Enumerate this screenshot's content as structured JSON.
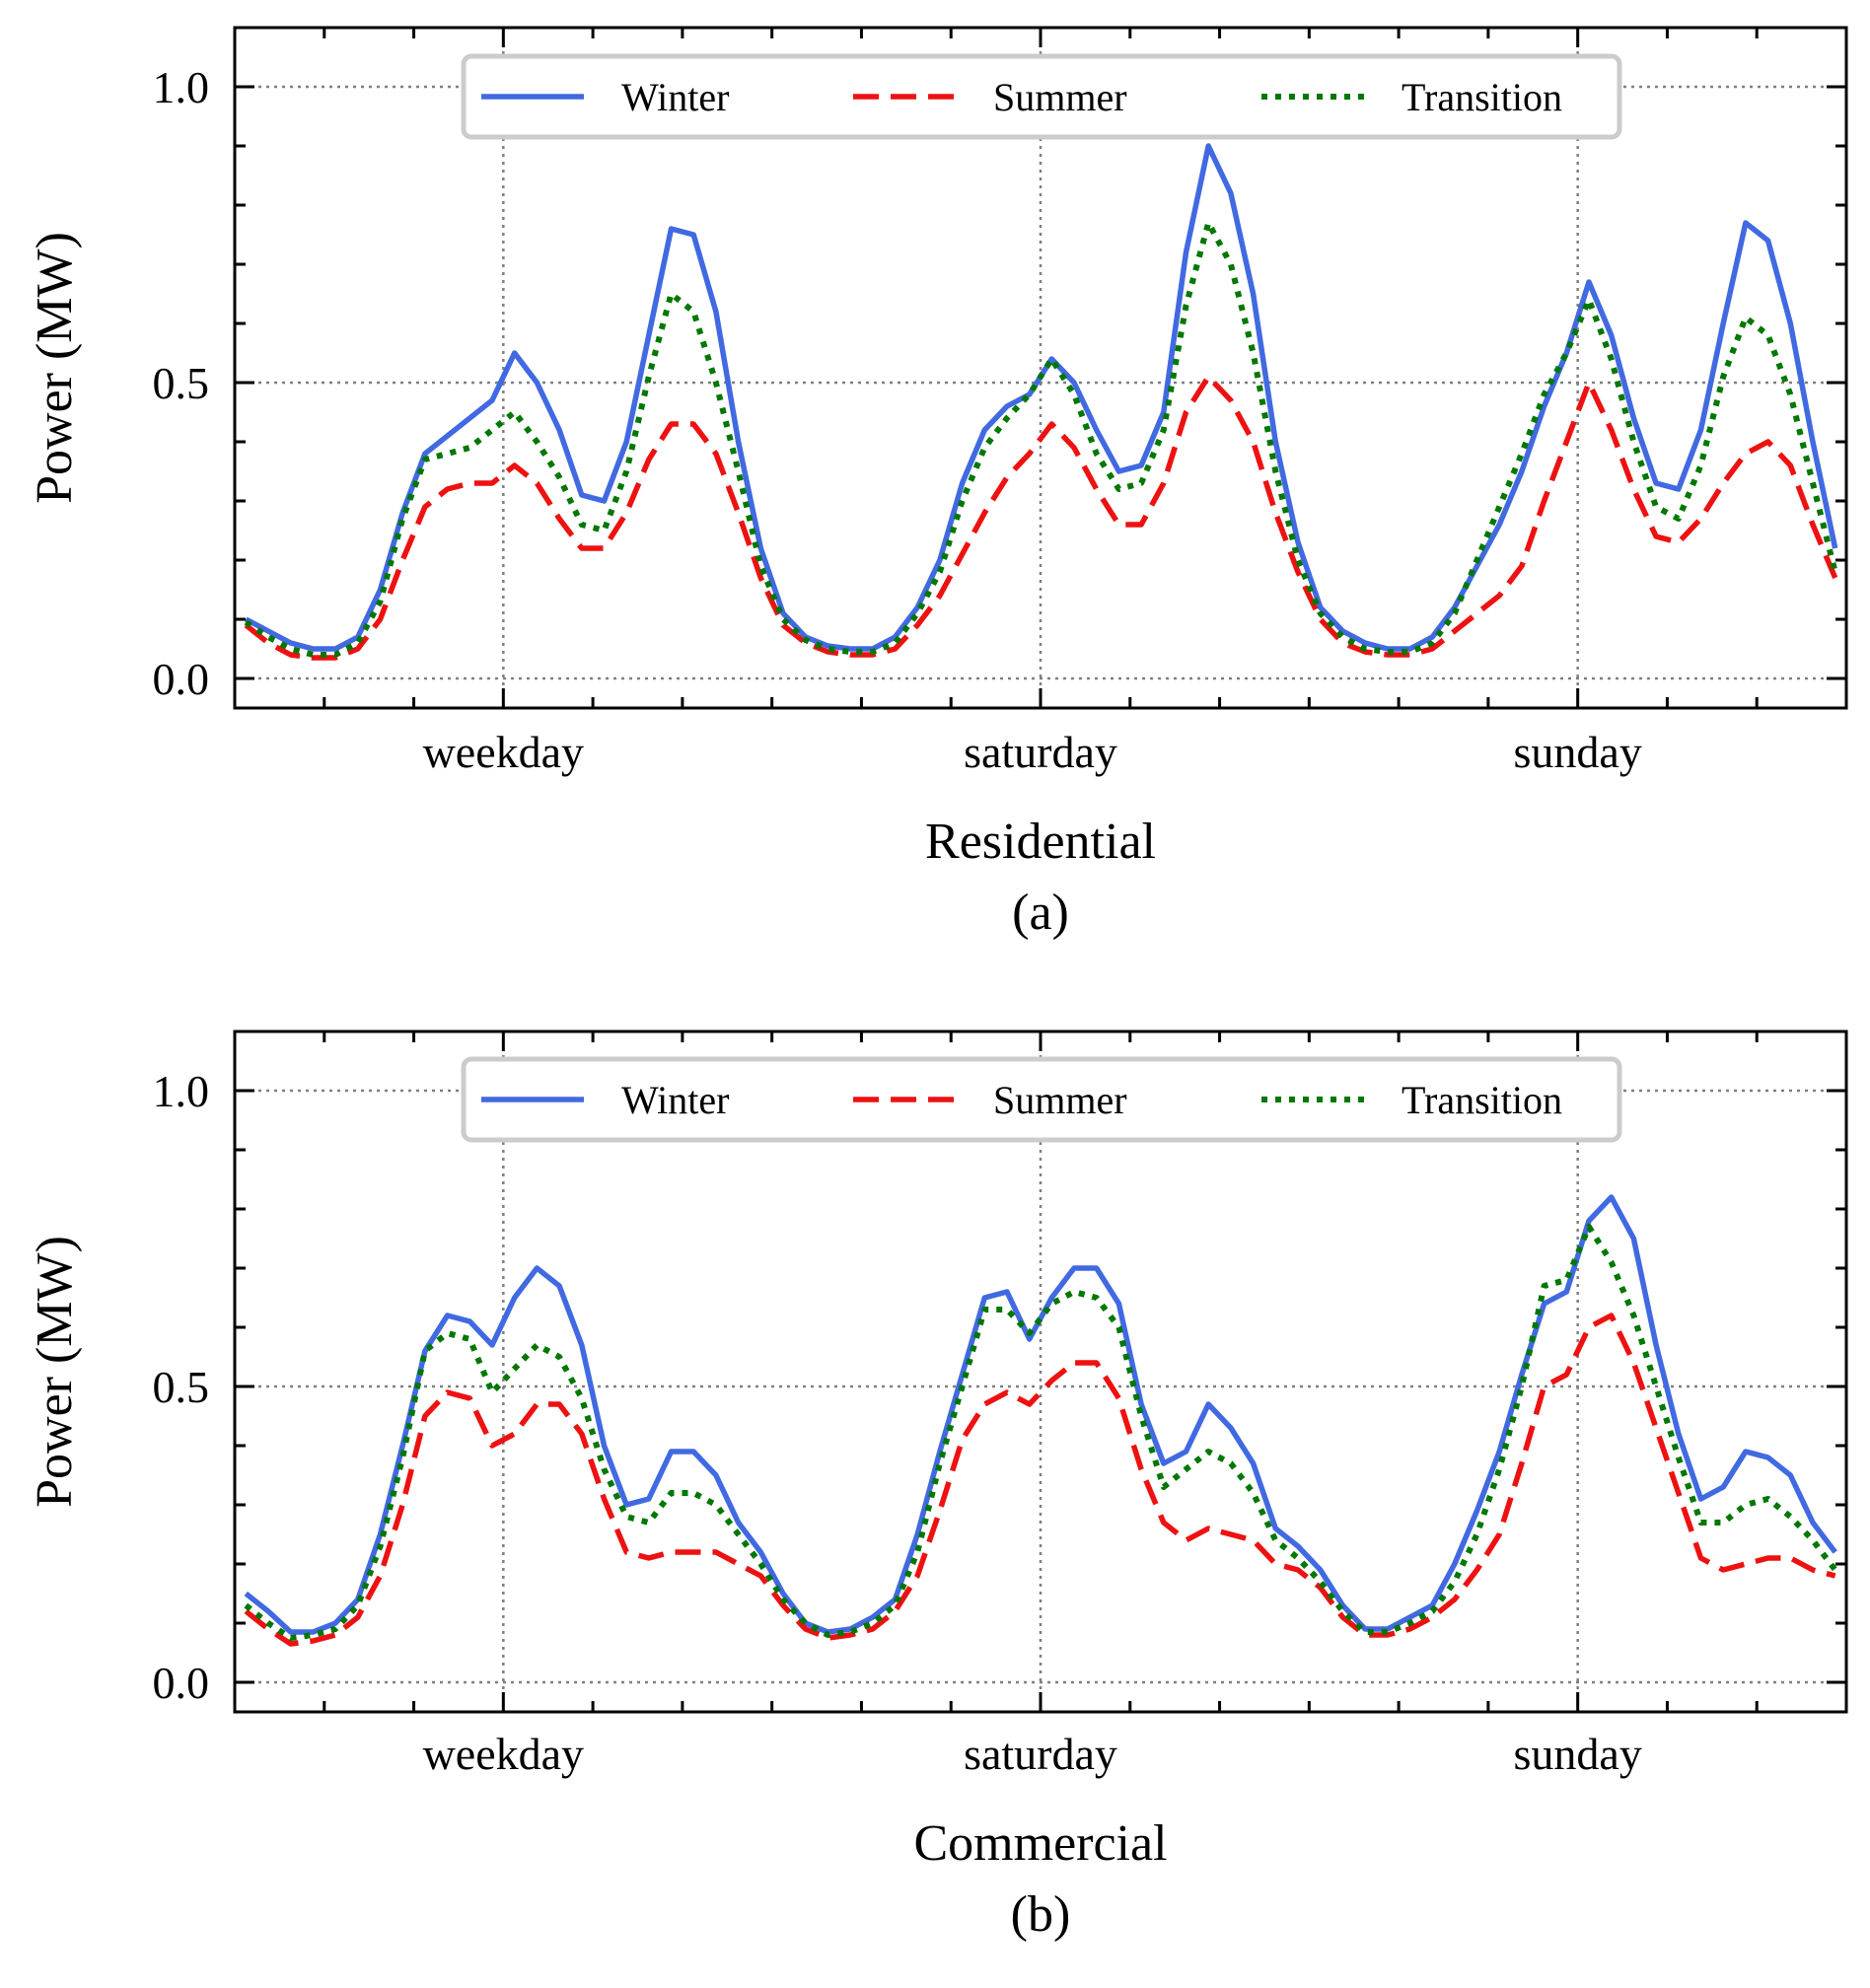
{
  "chart_data": [
    {
      "type": "line",
      "xlabel": "Residential",
      "caption": "(a)",
      "ylabel": "Power (MW)",
      "ylim": [
        -0.05,
        1.1
      ],
      "yticks": [
        "0.0",
        "0.5",
        "1.0"
      ],
      "xtick_labels": [
        "weekday",
        "saturday",
        "sunday"
      ],
      "x_domain": [
        0,
        72
      ],
      "xtick_positions": [
        12,
        36,
        60
      ],
      "grid": true,
      "legend_position": "top-center",
      "series": [
        {
          "name": "Winter",
          "color": "#4169E1",
          "dash": "solid",
          "values": [
            0.1,
            0.08,
            0.06,
            0.05,
            0.05,
            0.07,
            0.15,
            0.28,
            0.38,
            0.41,
            0.44,
            0.47,
            0.55,
            0.5,
            0.42,
            0.31,
            0.3,
            0.4,
            0.58,
            0.76,
            0.75,
            0.62,
            0.4,
            0.22,
            0.11,
            0.07,
            0.055,
            0.05,
            0.05,
            0.07,
            0.12,
            0.2,
            0.33,
            0.42,
            0.46,
            0.48,
            0.54,
            0.5,
            0.42,
            0.35,
            0.36,
            0.45,
            0.72,
            0.9,
            0.82,
            0.65,
            0.4,
            0.23,
            0.12,
            0.08,
            0.06,
            0.05,
            0.05,
            0.07,
            0.12,
            0.19,
            0.26,
            0.35,
            0.46,
            0.55,
            0.67,
            0.58,
            0.44,
            0.33,
            0.32,
            0.42,
            0.6,
            0.77,
            0.74,
            0.6,
            0.4,
            0.22
          ]
        },
        {
          "name": "Summer",
          "color": "#EE1111",
          "dash": "dashed",
          "values": [
            0.09,
            0.06,
            0.04,
            0.035,
            0.035,
            0.05,
            0.1,
            0.2,
            0.29,
            0.32,
            0.33,
            0.33,
            0.36,
            0.33,
            0.27,
            0.22,
            0.22,
            0.28,
            0.37,
            0.43,
            0.43,
            0.38,
            0.28,
            0.17,
            0.09,
            0.06,
            0.045,
            0.04,
            0.04,
            0.05,
            0.09,
            0.14,
            0.21,
            0.28,
            0.34,
            0.38,
            0.43,
            0.39,
            0.32,
            0.26,
            0.26,
            0.33,
            0.45,
            0.51,
            0.47,
            0.4,
            0.28,
            0.18,
            0.1,
            0.06,
            0.045,
            0.04,
            0.04,
            0.05,
            0.08,
            0.11,
            0.14,
            0.19,
            0.3,
            0.4,
            0.5,
            0.42,
            0.32,
            0.24,
            0.23,
            0.27,
            0.33,
            0.38,
            0.4,
            0.36,
            0.26,
            0.17
          ]
        },
        {
          "name": "Transition",
          "color": "#007700",
          "dash": "dotted",
          "values": [
            0.095,
            0.07,
            0.05,
            0.04,
            0.04,
            0.06,
            0.13,
            0.27,
            0.37,
            0.38,
            0.39,
            0.42,
            0.45,
            0.4,
            0.34,
            0.26,
            0.25,
            0.35,
            0.51,
            0.65,
            0.62,
            0.5,
            0.35,
            0.19,
            0.1,
            0.065,
            0.05,
            0.045,
            0.045,
            0.06,
            0.11,
            0.18,
            0.3,
            0.39,
            0.44,
            0.48,
            0.54,
            0.48,
            0.38,
            0.32,
            0.33,
            0.42,
            0.63,
            0.77,
            0.7,
            0.55,
            0.35,
            0.2,
            0.11,
            0.07,
            0.05,
            0.045,
            0.045,
            0.06,
            0.11,
            0.2,
            0.29,
            0.38,
            0.48,
            0.55,
            0.64,
            0.54,
            0.4,
            0.29,
            0.27,
            0.36,
            0.51,
            0.61,
            0.58,
            0.48,
            0.33,
            0.18
          ]
        }
      ]
    },
    {
      "type": "line",
      "xlabel": "Commercial",
      "caption": "(b)",
      "ylabel": "Power (MW)",
      "ylim": [
        -0.05,
        1.1
      ],
      "yticks": [
        "0.0",
        "0.5",
        "1.0"
      ],
      "xtick_labels": [
        "weekday",
        "saturday",
        "sunday"
      ],
      "x_domain": [
        0,
        72
      ],
      "xtick_positions": [
        12,
        36,
        60
      ],
      "grid": true,
      "legend_position": "top-center",
      "series": [
        {
          "name": "Winter",
          "color": "#4169E1",
          "dash": "solid",
          "values": [
            0.15,
            0.12,
            0.085,
            0.085,
            0.1,
            0.14,
            0.25,
            0.4,
            0.56,
            0.62,
            0.61,
            0.57,
            0.65,
            0.7,
            0.67,
            0.57,
            0.4,
            0.3,
            0.31,
            0.39,
            0.39,
            0.35,
            0.27,
            0.22,
            0.15,
            0.1,
            0.085,
            0.09,
            0.11,
            0.14,
            0.25,
            0.39,
            0.52,
            0.65,
            0.66,
            0.58,
            0.65,
            0.7,
            0.7,
            0.64,
            0.47,
            0.37,
            0.39,
            0.47,
            0.43,
            0.37,
            0.26,
            0.23,
            0.19,
            0.13,
            0.09,
            0.09,
            0.11,
            0.13,
            0.2,
            0.29,
            0.39,
            0.52,
            0.64,
            0.66,
            0.78,
            0.82,
            0.75,
            0.57,
            0.42,
            0.31,
            0.33,
            0.39,
            0.38,
            0.35,
            0.27,
            0.22
          ]
        },
        {
          "name": "Summer",
          "color": "#EE1111",
          "dash": "dashed",
          "values": [
            0.12,
            0.09,
            0.065,
            0.07,
            0.08,
            0.11,
            0.18,
            0.3,
            0.45,
            0.49,
            0.48,
            0.4,
            0.42,
            0.47,
            0.47,
            0.42,
            0.31,
            0.22,
            0.21,
            0.22,
            0.22,
            0.22,
            0.2,
            0.18,
            0.13,
            0.09,
            0.075,
            0.08,
            0.09,
            0.12,
            0.18,
            0.29,
            0.41,
            0.47,
            0.49,
            0.47,
            0.51,
            0.54,
            0.54,
            0.48,
            0.36,
            0.27,
            0.24,
            0.26,
            0.25,
            0.24,
            0.2,
            0.19,
            0.16,
            0.11,
            0.08,
            0.08,
            0.09,
            0.11,
            0.14,
            0.19,
            0.25,
            0.37,
            0.5,
            0.52,
            0.6,
            0.62,
            0.54,
            0.43,
            0.32,
            0.21,
            0.19,
            0.2,
            0.21,
            0.21,
            0.19,
            0.18
          ]
        },
        {
          "name": "Transition",
          "color": "#007700",
          "dash": "dotted",
          "values": [
            0.13,
            0.1,
            0.075,
            0.08,
            0.09,
            0.13,
            0.23,
            0.38,
            0.56,
            0.59,
            0.58,
            0.49,
            0.53,
            0.57,
            0.55,
            0.48,
            0.36,
            0.28,
            0.27,
            0.32,
            0.32,
            0.3,
            0.25,
            0.2,
            0.14,
            0.1,
            0.08,
            0.085,
            0.1,
            0.13,
            0.22,
            0.37,
            0.5,
            0.63,
            0.63,
            0.59,
            0.64,
            0.66,
            0.65,
            0.6,
            0.45,
            0.33,
            0.36,
            0.39,
            0.37,
            0.32,
            0.24,
            0.21,
            0.17,
            0.12,
            0.085,
            0.085,
            0.1,
            0.12,
            0.17,
            0.25,
            0.36,
            0.5,
            0.67,
            0.68,
            0.77,
            0.71,
            0.62,
            0.5,
            0.38,
            0.27,
            0.27,
            0.3,
            0.31,
            0.28,
            0.24,
            0.19
          ]
        }
      ]
    }
  ]
}
